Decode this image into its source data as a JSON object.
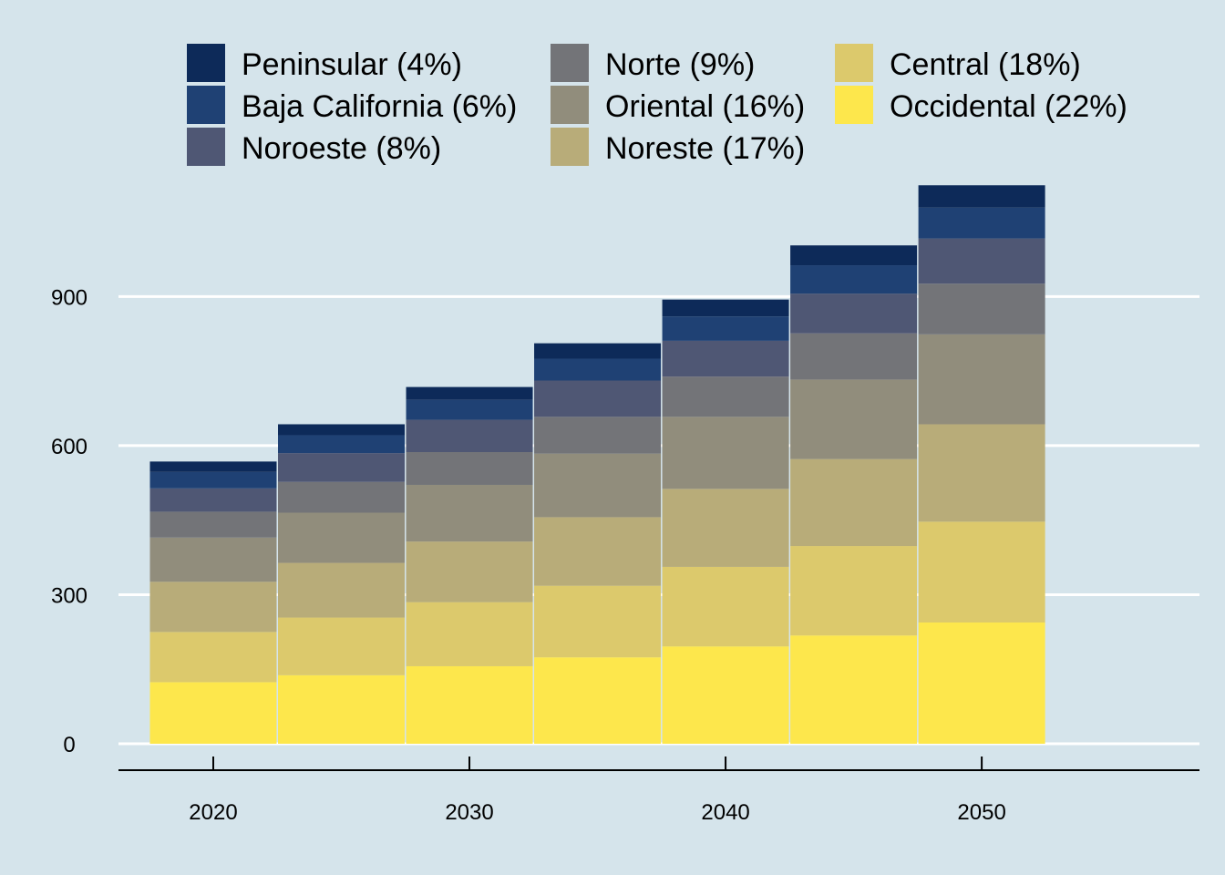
{
  "chart_data": {
    "type": "bar",
    "stacked": true,
    "title": "",
    "xlabel": "",
    "ylabel": "",
    "x": [
      2020,
      2025,
      2030,
      2035,
      2040,
      2045,
      2050
    ],
    "x_ticks": [
      "2020",
      "2030",
      "2040",
      "2050"
    ],
    "y_ticks": [
      "0",
      "300",
      "600",
      "900"
    ],
    "ylim": [
      0,
      1130
    ],
    "xlim": [
      2016.3,
      2058.5
    ],
    "grid": "horizontal",
    "legend_position": "top",
    "series": [
      {
        "name": "Occidental (22%)",
        "color": "#fde74c",
        "values": [
          124,
          138,
          156,
          174,
          196,
          218,
          244
        ]
      },
      {
        "name": "Central (18%)",
        "color": "#dcc96c",
        "values": [
          101,
          116,
          129,
          144,
          160,
          180,
          203
        ]
      },
      {
        "name": "Noreste (17%)",
        "color": "#b8ac79",
        "values": [
          101,
          110,
          122,
          138,
          157,
          175,
          196
        ]
      },
      {
        "name": "Oriental (16%)",
        "color": "#918d7c",
        "values": [
          89,
          101,
          114,
          128,
          145,
          160,
          181
        ]
      },
      {
        "name": "Norte (9%)",
        "color": "#737478",
        "values": [
          52,
          62,
          66,
          74,
          81,
          93,
          102
        ]
      },
      {
        "name": "Noroeste (8%)",
        "color": "#4f5774",
        "values": [
          47,
          58,
          65,
          73,
          72,
          80,
          91
        ]
      },
      {
        "name": "Baja California (6%)",
        "color": "#1f4174",
        "values": [
          33,
          36,
          40,
          44,
          49,
          57,
          62
        ]
      },
      {
        "name": "Peninsular (4%)",
        "color": "#0d2a59",
        "values": [
          21,
          22,
          26,
          31,
          34,
          40,
          45
        ]
      }
    ],
    "legend_order": [
      "Peninsular (4%)",
      "Baja California (6%)",
      "Noroeste (8%)",
      "Norte (9%)",
      "Oriental (16%)",
      "Noreste (17%)",
      "Central (18%)",
      "Occidental (22%)"
    ]
  },
  "colors": {
    "background": "#d5e4eb",
    "grid": "#ffffff",
    "axis": "#000000"
  }
}
